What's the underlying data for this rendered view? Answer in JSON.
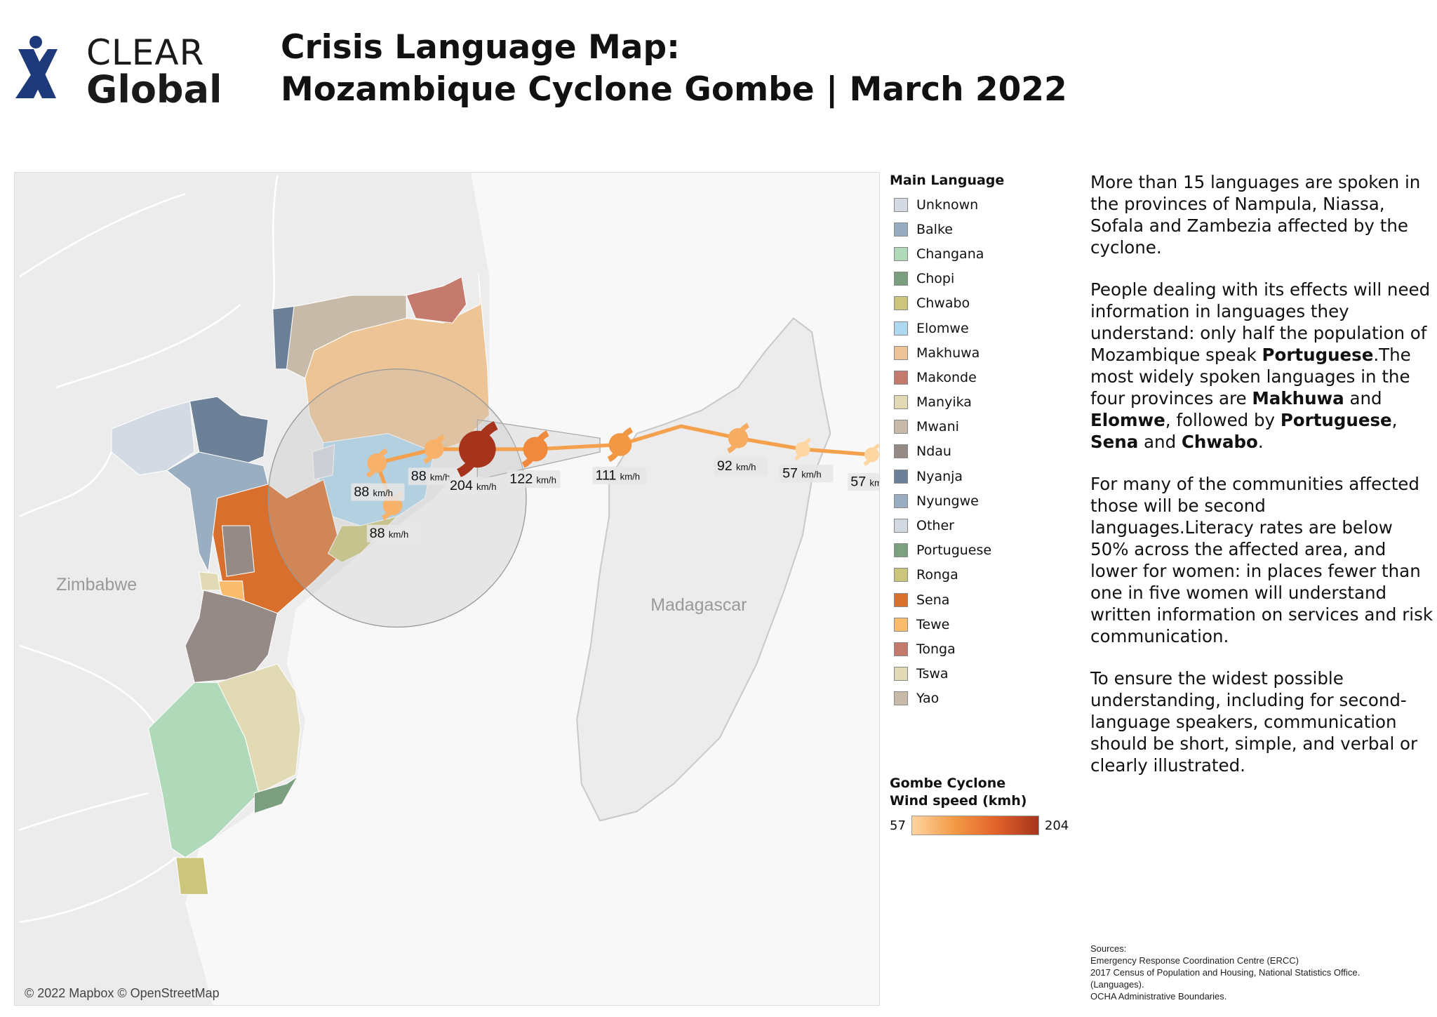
{
  "logo": {
    "line1": "CLEAR",
    "line2": "Global",
    "brand_color": "#1f3a7a"
  },
  "title": {
    "line1": "Crisis Language Map:",
    "line2": "Mozambique Cyclone Gombe | March 2022"
  },
  "map": {
    "place_labels": {
      "zimbabwe": "Zimbabwe",
      "madagascar": "Madagascar"
    },
    "copyright": "© 2022 Mapbox © OpenStreetMap",
    "speed_unit": "km/h",
    "track_color": "#f4a04c",
    "track": [
      {
        "speed": 88,
        "label": "88"
      },
      {
        "speed": 88,
        "label": "88"
      },
      {
        "speed": 88,
        "label": "88"
      },
      {
        "speed": 204,
        "label": "204"
      },
      {
        "speed": 122,
        "label": "122"
      },
      {
        "speed": 111,
        "label": "111"
      },
      {
        "speed": 92,
        "label": "92"
      },
      {
        "speed": 57,
        "label": "57"
      },
      {
        "speed": 57,
        "label": "57"
      }
    ]
  },
  "legend": {
    "title": "Main Language",
    "items": [
      {
        "label": "Unknown",
        "color": "#d3dae3"
      },
      {
        "label": "Balke",
        "color": "#97acc0"
      },
      {
        "label": "Changana",
        "color": "#afd9b8"
      },
      {
        "label": "Chopi",
        "color": "#7a9e7e"
      },
      {
        "label": "Chwabo",
        "color": "#cbc67b"
      },
      {
        "label": "Elomwe",
        "color": "#aed8ef"
      },
      {
        "label": "Makhuwa",
        "color": "#ecc495"
      },
      {
        "label": "Makonde",
        "color": "#c57a6e"
      },
      {
        "label": "Manyika",
        "color": "#e1dab5"
      },
      {
        "label": "Mwani",
        "color": "#c8baa9"
      },
      {
        "label": "Ndau",
        "color": "#958a85"
      },
      {
        "label": "Nyanja",
        "color": "#6c8198"
      },
      {
        "label": "Nyungwe",
        "color": "#9aaec2"
      },
      {
        "label": "Other",
        "color": "#d3d9e1"
      },
      {
        "label": "Portuguese",
        "color": "#7ba17f"
      },
      {
        "label": "Ronga",
        "color": "#cbc67b"
      },
      {
        "label": "Sena",
        "color": "#d86f2c"
      },
      {
        "label": "Tewe",
        "color": "#fbbb6c"
      },
      {
        "label": "Tonga",
        "color": "#c57a6e"
      },
      {
        "label": "Tswa",
        "color": "#e1dab5"
      },
      {
        "label": "Yao",
        "color": "#c8baa9"
      }
    ]
  },
  "wind_legend": {
    "title_line1": "Gombe Cyclone",
    "title_line2": "Wind speed (kmh)",
    "min": "57",
    "max": "204",
    "min_color": "#fdd5a0",
    "max_color": "#a6341c"
  },
  "description": [
    [
      {
        "text": "More than 15 languages are spoken in the provinces of Nampula, Niassa, Sofala and Zambezia affected by the cyclone.",
        "bold": false
      }
    ],
    [
      {
        "text": "People dealing with its effects will need information in languages they understand: only half the population of Mozambique speak ",
        "bold": false
      },
      {
        "text": "Portuguese",
        "bold": true
      },
      {
        "text": ".The most widely spoken languages in the four provinces are ",
        "bold": false
      },
      {
        "text": "Makhuwa",
        "bold": true
      },
      {
        "text": " and ",
        "bold": false
      },
      {
        "text": "Elomwe",
        "bold": true
      },
      {
        "text": ", followed by ",
        "bold": false
      },
      {
        "text": "Portuguese",
        "bold": true
      },
      {
        "text": ", ",
        "bold": false
      },
      {
        "text": "Sena",
        "bold": true
      },
      {
        "text": " and ",
        "bold": false
      },
      {
        "text": "Chwabo",
        "bold": true
      },
      {
        "text": ".",
        "bold": false
      }
    ],
    [
      {
        "text": "For many of the communities affected those will be second languages.Literacy rates are below 50% across the affected area, and lower for women: in places fewer than one in five women will understand written information on services and risk communication.",
        "bold": false
      }
    ],
    [
      {
        "text": "To ensure the widest possible understanding, including for second-language speakers, communication should be short, simple, and verbal or clearly illustrated.",
        "bold": false
      }
    ]
  ],
  "sources": [
    "Sources:",
    "Emergency Response Coordination Centre (ERCC)",
    "2017 Census of Population and Housing, National Statistics Office.",
    "(Languages).",
    "OCHA Administrative Boundaries."
  ]
}
